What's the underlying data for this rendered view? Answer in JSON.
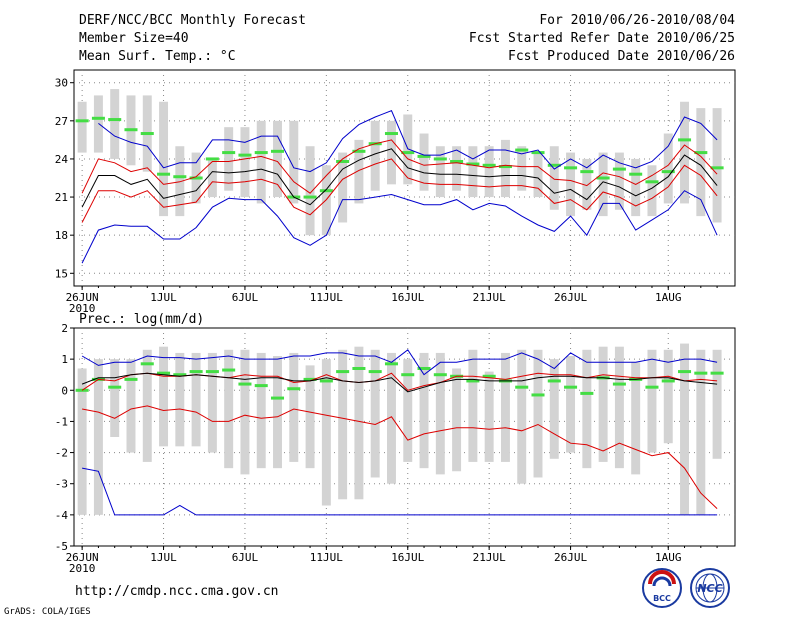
{
  "header": {
    "title": "DERF/NCC/BCC Monthly Forecast",
    "member_size": "Member Size=40",
    "variable": "Mean Surf. Temp.: °C",
    "period": "For 2010/06/26-2010/08/04",
    "started": "Fcst Started Refer Date 2010/06/25",
    "produced": "Fcst Produced Date 2010/06/26"
  },
  "footer": {
    "url": "http://cmdp.ncc.cma.gov.cn",
    "credit": "GrADS: COLA/IGES",
    "logo_left_text": "BCC",
    "logo_right_text": "NCC"
  },
  "colors": {
    "grid": "#888888",
    "box": "#d3d3d3",
    "median": "#44dd44",
    "ensemble_mean": "#000000",
    "spread": "#dd0000",
    "extremes": "#0000cc",
    "logo_blue": "#1a3aa0",
    "logo_red": "#cc1111"
  },
  "chart_data": [
    {
      "type": "box-line",
      "title": "Mean Surf. Temp.: °C",
      "xlabel": "",
      "ylabel": "",
      "ylim": [
        14,
        31
      ],
      "yticks": [
        15,
        18,
        21,
        24,
        27,
        30
      ],
      "xlim": [
        0,
        40
      ],
      "xticks": [
        {
          "day": 0,
          "label": "26JUN",
          "sub": "2010"
        },
        {
          "day": 5,
          "label": "1JUL"
        },
        {
          "day": 10,
          "label": "6JUL"
        },
        {
          "day": 15,
          "label": "11JUL"
        },
        {
          "day": 20,
          "label": "16JUL"
        },
        {
          "day": 25,
          "label": "21JUL"
        },
        {
          "day": 30,
          "label": "26JUL"
        },
        {
          "day": 36,
          "label": "1AUG"
        }
      ],
      "days": [
        0,
        1,
        2,
        3,
        4,
        5,
        6,
        7,
        8,
        9,
        10,
        11,
        12,
        13,
        14,
        15,
        16,
        17,
        18,
        19,
        20,
        21,
        22,
        23,
        24,
        25,
        26,
        27,
        28,
        29,
        30,
        31,
        32,
        33,
        34,
        35,
        36,
        37,
        38,
        39
      ],
      "box_low": [
        24.5,
        24.5,
        24.0,
        23.5,
        23.0,
        19.5,
        19.5,
        20.5,
        21.0,
        21.5,
        21.0,
        20.5,
        21.0,
        20.5,
        18.0,
        18.0,
        19.0,
        20.5,
        21.5,
        22.0,
        22.0,
        21.5,
        21.0,
        21.5,
        21.0,
        21.0,
        21.0,
        21.5,
        21.0,
        20.0,
        19.5,
        20.0,
        19.5,
        20.0,
        19.5,
        19.5,
        20.5,
        20.5,
        19.5,
        19.0
      ],
      "box_high": [
        28.5,
        29.0,
        29.5,
        29.0,
        29.0,
        28.5,
        25.0,
        24.5,
        24.0,
        26.5,
        26.5,
        27.0,
        27.0,
        27.0,
        25.0,
        23.5,
        24.5,
        25.5,
        27.0,
        27.0,
        27.5,
        26.0,
        25.0,
        25.0,
        25.0,
        25.0,
        25.5,
        25.0,
        24.5,
        25.0,
        24.5,
        24.0,
        24.5,
        24.5,
        24.0,
        23.5,
        26.0,
        28.5,
        28.0,
        28.0
      ],
      "median": [
        27.0,
        27.2,
        27.1,
        26.3,
        26.0,
        22.8,
        22.6,
        22.5,
        24.0,
        24.5,
        24.3,
        24.5,
        24.6,
        21.0,
        21.0,
        21.5,
        23.8,
        24.6,
        25.2,
        26.0,
        24.5,
        24.2,
        24.0,
        23.8,
        23.6,
        23.5,
        23.4,
        24.7,
        24.5,
        23.5,
        23.3,
        23.0,
        22.5,
        23.2,
        22.8,
        22.2,
        23.0,
        25.5,
        24.5,
        23.3
      ],
      "series": [
        {
          "name": "max",
          "color": "#0000cc",
          "values": [
            null,
            26.8,
            25.8,
            25.3,
            25.0,
            23.3,
            23.7,
            23.7,
            25.5,
            25.5,
            25.3,
            25.8,
            25.8,
            23.3,
            23.0,
            23.7,
            25.6,
            26.7,
            27.3,
            27.8,
            24.8,
            24.3,
            24.3,
            24.7,
            24.0,
            24.7,
            24.7,
            24.4,
            24.7,
            23.2,
            24.0,
            23.3,
            24.3,
            23.7,
            23.3,
            23.8,
            25.0,
            27.3,
            26.8,
            25.5
          ]
        },
        {
          "name": "mean+sd",
          "color": "#dd0000",
          "values": [
            21.3,
            24.0,
            23.7,
            23.0,
            23.3,
            22.0,
            22.2,
            22.6,
            23.8,
            23.8,
            24.0,
            24.2,
            23.8,
            22.2,
            21.3,
            22.7,
            24.0,
            24.8,
            25.2,
            25.5,
            24.0,
            23.5,
            23.6,
            23.7,
            23.5,
            23.3,
            23.5,
            23.4,
            23.4,
            22.4,
            22.3,
            21.9,
            22.9,
            22.6,
            22.0,
            22.7,
            23.5,
            25.1,
            24.2,
            22.8
          ]
        },
        {
          "name": "ensemble mean",
          "color": "#000000",
          "values": [
            20.2,
            22.7,
            22.7,
            22.0,
            22.4,
            20.9,
            21.2,
            21.5,
            23.0,
            22.9,
            23.0,
            23.2,
            22.8,
            21.0,
            20.4,
            21.6,
            23.2,
            23.9,
            24.4,
            24.8,
            23.3,
            22.9,
            22.8,
            22.8,
            22.7,
            22.6,
            22.7,
            22.7,
            22.5,
            21.3,
            21.6,
            20.8,
            22.2,
            21.8,
            21.1,
            21.7,
            22.6,
            24.3,
            23.5,
            21.9
          ]
        },
        {
          "name": "mean-sd",
          "color": "#dd0000",
          "values": [
            19.0,
            21.5,
            21.5,
            21.0,
            21.5,
            20.2,
            20.4,
            20.6,
            22.2,
            22.1,
            22.2,
            22.4,
            22.0,
            20.2,
            19.6,
            20.8,
            22.4,
            23.1,
            23.6,
            24.0,
            22.5,
            22.1,
            22.0,
            22.0,
            21.9,
            21.8,
            21.9,
            21.9,
            21.7,
            20.5,
            20.8,
            20.0,
            21.4,
            21.0,
            20.3,
            20.9,
            21.8,
            23.5,
            22.7,
            21.1
          ]
        },
        {
          "name": "min",
          "color": "#0000cc",
          "values": [
            15.8,
            18.4,
            18.8,
            18.7,
            18.7,
            17.7,
            17.7,
            18.6,
            20.2,
            20.9,
            20.8,
            20.8,
            19.5,
            17.8,
            17.2,
            18.0,
            20.8,
            20.8,
            21.0,
            21.2,
            20.8,
            20.4,
            20.4,
            20.8,
            20.0,
            20.5,
            20.3,
            19.5,
            18.8,
            18.3,
            19.5,
            18.0,
            20.5,
            20.5,
            18.4,
            19.2,
            20.0,
            21.5,
            20.8,
            18.0
          ]
        }
      ]
    },
    {
      "type": "box-line",
      "title": "Prec.: log(mm/d)",
      "xlabel": "",
      "ylabel": "",
      "ylim": [
        -5,
        2
      ],
      "yticks": [
        -5,
        -4,
        -3,
        -2,
        -1,
        0,
        1,
        2
      ],
      "xlim": [
        0,
        40
      ],
      "xticks": [
        {
          "day": 0,
          "label": "26JUN",
          "sub": "2010"
        },
        {
          "day": 5,
          "label": "1JUL"
        },
        {
          "day": 10,
          "label": "6JUL"
        },
        {
          "day": 15,
          "label": "11JUL"
        },
        {
          "day": 20,
          "label": "16JUL"
        },
        {
          "day": 25,
          "label": "21JUL"
        },
        {
          "day": 30,
          "label": "26JUL"
        },
        {
          "day": 36,
          "label": "1AUG"
        }
      ],
      "days": [
        0,
        1,
        2,
        3,
        4,
        5,
        6,
        7,
        8,
        9,
        10,
        11,
        12,
        13,
        14,
        15,
        16,
        17,
        18,
        19,
        20,
        21,
        22,
        23,
        24,
        25,
        26,
        27,
        28,
        29,
        30,
        31,
        32,
        33,
        34,
        35,
        36,
        37,
        38,
        39
      ],
      "box_low": [
        -4.0,
        -4.0,
        -1.5,
        -2.0,
        -2.3,
        -1.8,
        -1.8,
        -1.8,
        -2.0,
        -2.5,
        -2.7,
        -2.5,
        -2.5,
        -2.3,
        -2.5,
        -3.7,
        -3.5,
        -3.5,
        -2.8,
        -3.0,
        -2.3,
        -2.5,
        -2.7,
        -2.6,
        -2.3,
        -2.3,
        -2.3,
        -3.0,
        -2.8,
        -2.2,
        -2.0,
        -2.5,
        -2.3,
        -2.5,
        -2.7,
        -2.0,
        -1.7,
        -4.0,
        -4.0,
        -2.2
      ],
      "box_high": [
        0.7,
        1.0,
        1.0,
        1.0,
        1.3,
        1.4,
        1.2,
        1.2,
        1.2,
        1.3,
        1.3,
        1.2,
        1.1,
        1.2,
        0.8,
        1.0,
        1.3,
        1.4,
        1.3,
        1.2,
        1.0,
        1.2,
        1.2,
        0.7,
        1.3,
        0.6,
        1.2,
        1.3,
        1.3,
        1.0,
        1.1,
        1.3,
        1.4,
        1.4,
        0.9,
        1.3,
        1.3,
        1.5,
        1.3,
        1.3
      ],
      "median": [
        0.0,
        0.35,
        0.1,
        0.35,
        0.85,
        0.55,
        0.5,
        0.6,
        0.6,
        0.65,
        0.2,
        0.15,
        -0.25,
        0.05,
        0.35,
        0.3,
        0.6,
        0.7,
        0.6,
        0.85,
        0.5,
        0.7,
        0.5,
        0.45,
        0.3,
        0.45,
        0.3,
        0.1,
        -0.15,
        0.3,
        0.1,
        -0.1,
        0.4,
        0.2,
        0.35,
        0.1,
        0.3,
        0.6,
        0.55,
        0.55
      ],
      "series": [
        {
          "name": "max",
          "color": "#0000cc",
          "values": [
            1.1,
            0.8,
            0.9,
            0.9,
            1.1,
            1.05,
            1.05,
            1.0,
            1.05,
            1.1,
            1.0,
            1.0,
            1.0,
            1.1,
            1.1,
            1.2,
            1.2,
            1.1,
            1.1,
            0.9,
            1.3,
            0.5,
            0.9,
            0.9,
            1.0,
            1.0,
            1.0,
            1.2,
            1.0,
            0.7,
            1.2,
            0.9,
            0.9,
            0.9,
            0.9,
            1.0,
            0.9,
            1.0,
            1.0,
            0.9
          ]
        },
        {
          "name": "mean+sd",
          "color": "#dd0000",
          "values": [
            0.0,
            0.35,
            0.3,
            0.5,
            0.55,
            0.45,
            0.45,
            0.5,
            0.45,
            0.4,
            0.5,
            0.45,
            0.45,
            0.25,
            0.3,
            0.5,
            0.3,
            0.25,
            0.3,
            0.55,
            0.0,
            0.15,
            0.25,
            0.45,
            0.45,
            0.4,
            0.35,
            0.45,
            0.55,
            0.5,
            0.5,
            0.4,
            0.5,
            0.45,
            0.4,
            0.4,
            0.45,
            0.3,
            0.35,
            0.3
          ]
        },
        {
          "name": "ensemble mean",
          "color": "#000000",
          "values": [
            0.2,
            0.4,
            0.4,
            0.5,
            0.55,
            0.5,
            0.45,
            0.5,
            0.45,
            0.4,
            0.35,
            0.4,
            0.4,
            0.3,
            0.3,
            0.4,
            0.3,
            0.25,
            0.3,
            0.4,
            -0.05,
            0.1,
            0.25,
            0.35,
            0.35,
            0.3,
            0.3,
            0.3,
            0.4,
            0.45,
            0.45,
            0.4,
            0.4,
            0.35,
            0.35,
            0.4,
            0.4,
            0.3,
            0.25,
            0.2
          ]
        },
        {
          "name": "mean-sd",
          "color": "#dd0000",
          "values": [
            -0.6,
            -0.7,
            -0.9,
            -0.6,
            -0.5,
            -0.65,
            -0.6,
            -0.7,
            -1.0,
            -1.0,
            -0.8,
            -0.9,
            -0.85,
            -0.6,
            -0.7,
            -0.8,
            -0.9,
            -1.0,
            -1.1,
            -0.85,
            -1.6,
            -1.4,
            -1.3,
            -1.2,
            -1.2,
            -1.25,
            -1.2,
            -1.3,
            -1.1,
            -1.4,
            -1.7,
            -1.75,
            -1.95,
            -1.7,
            -1.9,
            -2.1,
            -2.0,
            -2.5,
            -3.3,
            -3.8
          ]
        },
        {
          "name": "min",
          "color": "#0000cc",
          "values": [
            -2.5,
            -2.6,
            -4.0,
            -4.0,
            -4.0,
            -4.0,
            -3.7,
            -4.0,
            -4.0,
            -4.0,
            -4.0,
            -4.0,
            -4.0,
            -4.0,
            -4.0,
            -4.0,
            -4.0,
            -4.0,
            -4.0,
            -4.0,
            -4.0,
            -4.0,
            -4.0,
            -4.0,
            -4.0,
            -4.0,
            -4.0,
            -4.0,
            -4.0,
            -4.0,
            -4.0,
            -4.0,
            -4.0,
            -4.0,
            -4.0,
            -4.0,
            -4.0,
            -4.0,
            -4.0,
            -4.0
          ]
        }
      ]
    }
  ]
}
